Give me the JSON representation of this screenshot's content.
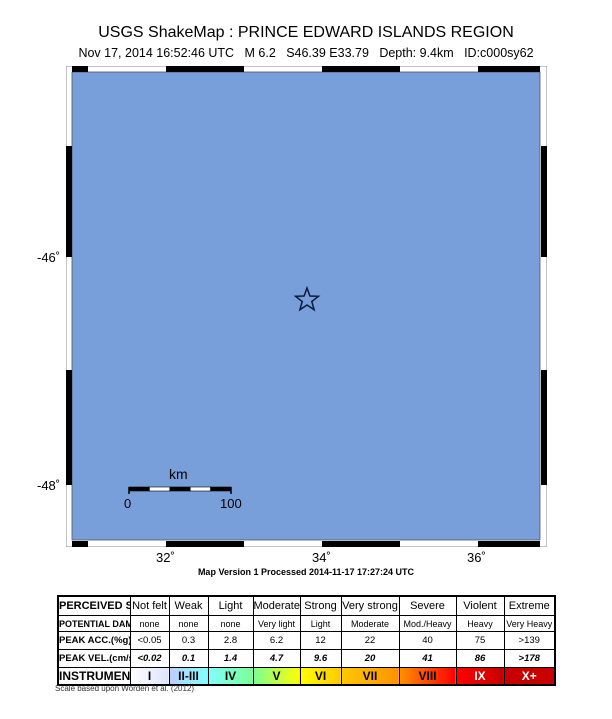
{
  "header": {
    "title": "USGS ShakeMap : PRINCE EDWARD ISLANDS REGION",
    "subtitle": "Nov 17, 2014 16:52:46 UTC   M 6.2   S46.39 E33.79   Depth: 9.4km   ID:c000sy62"
  },
  "map": {
    "fill_color": "#799fdb",
    "epicenter_icon": "star-icon",
    "lat_labels": [
      "-46˚",
      "-48˚"
    ],
    "lon_labels": [
      "32˚",
      "34˚",
      "36˚"
    ],
    "scale_bar": {
      "unit": "km",
      "start": "0",
      "end": "100"
    }
  },
  "version_text": "Map Version 1 Processed 2014-11-17 17:27:24 UTC",
  "legend": {
    "rows": [
      {
        "label": "PERCEIVED SHAKING",
        "values": [
          "Not felt",
          "Weak",
          "Light",
          "Moderate",
          "Strong",
          "Very strong",
          "Severe",
          "Violent",
          "Extreme"
        ]
      },
      {
        "label": "POTENTIAL DAMAGE",
        "values": [
          "none",
          "none",
          "none",
          "Very light",
          "Light",
          "Moderate",
          "Mod./Heavy",
          "Heavy",
          "Very Heavy"
        ]
      },
      {
        "label": "PEAK ACC.(%g)",
        "values": [
          "<0.05",
          "0.3",
          "2.8",
          "6.2",
          "12",
          "22",
          "40",
          "75",
          ">139"
        ]
      },
      {
        "label": "PEAK VEL.(cm/s)",
        "values": [
          "<0.02",
          "0.1",
          "1.4",
          "4.7",
          "9.6",
          "20",
          "41",
          "86",
          ">178"
        ]
      },
      {
        "label": "INSTRUMENTAL INTENSITY",
        "values": [
          "I",
          "II-III",
          "IV",
          "V",
          "VI",
          "VII",
          "VIII",
          "IX",
          "X+"
        ]
      }
    ],
    "intensity_colors": [
      "#ffffff",
      "#bfccff",
      "#80ffff",
      "#7aff93",
      "#ffff00",
      "#ffc800",
      "#ff9100",
      "#ff0000",
      "#c80000"
    ]
  },
  "footnote": "Scale based upon Worden et al. (2012)"
}
